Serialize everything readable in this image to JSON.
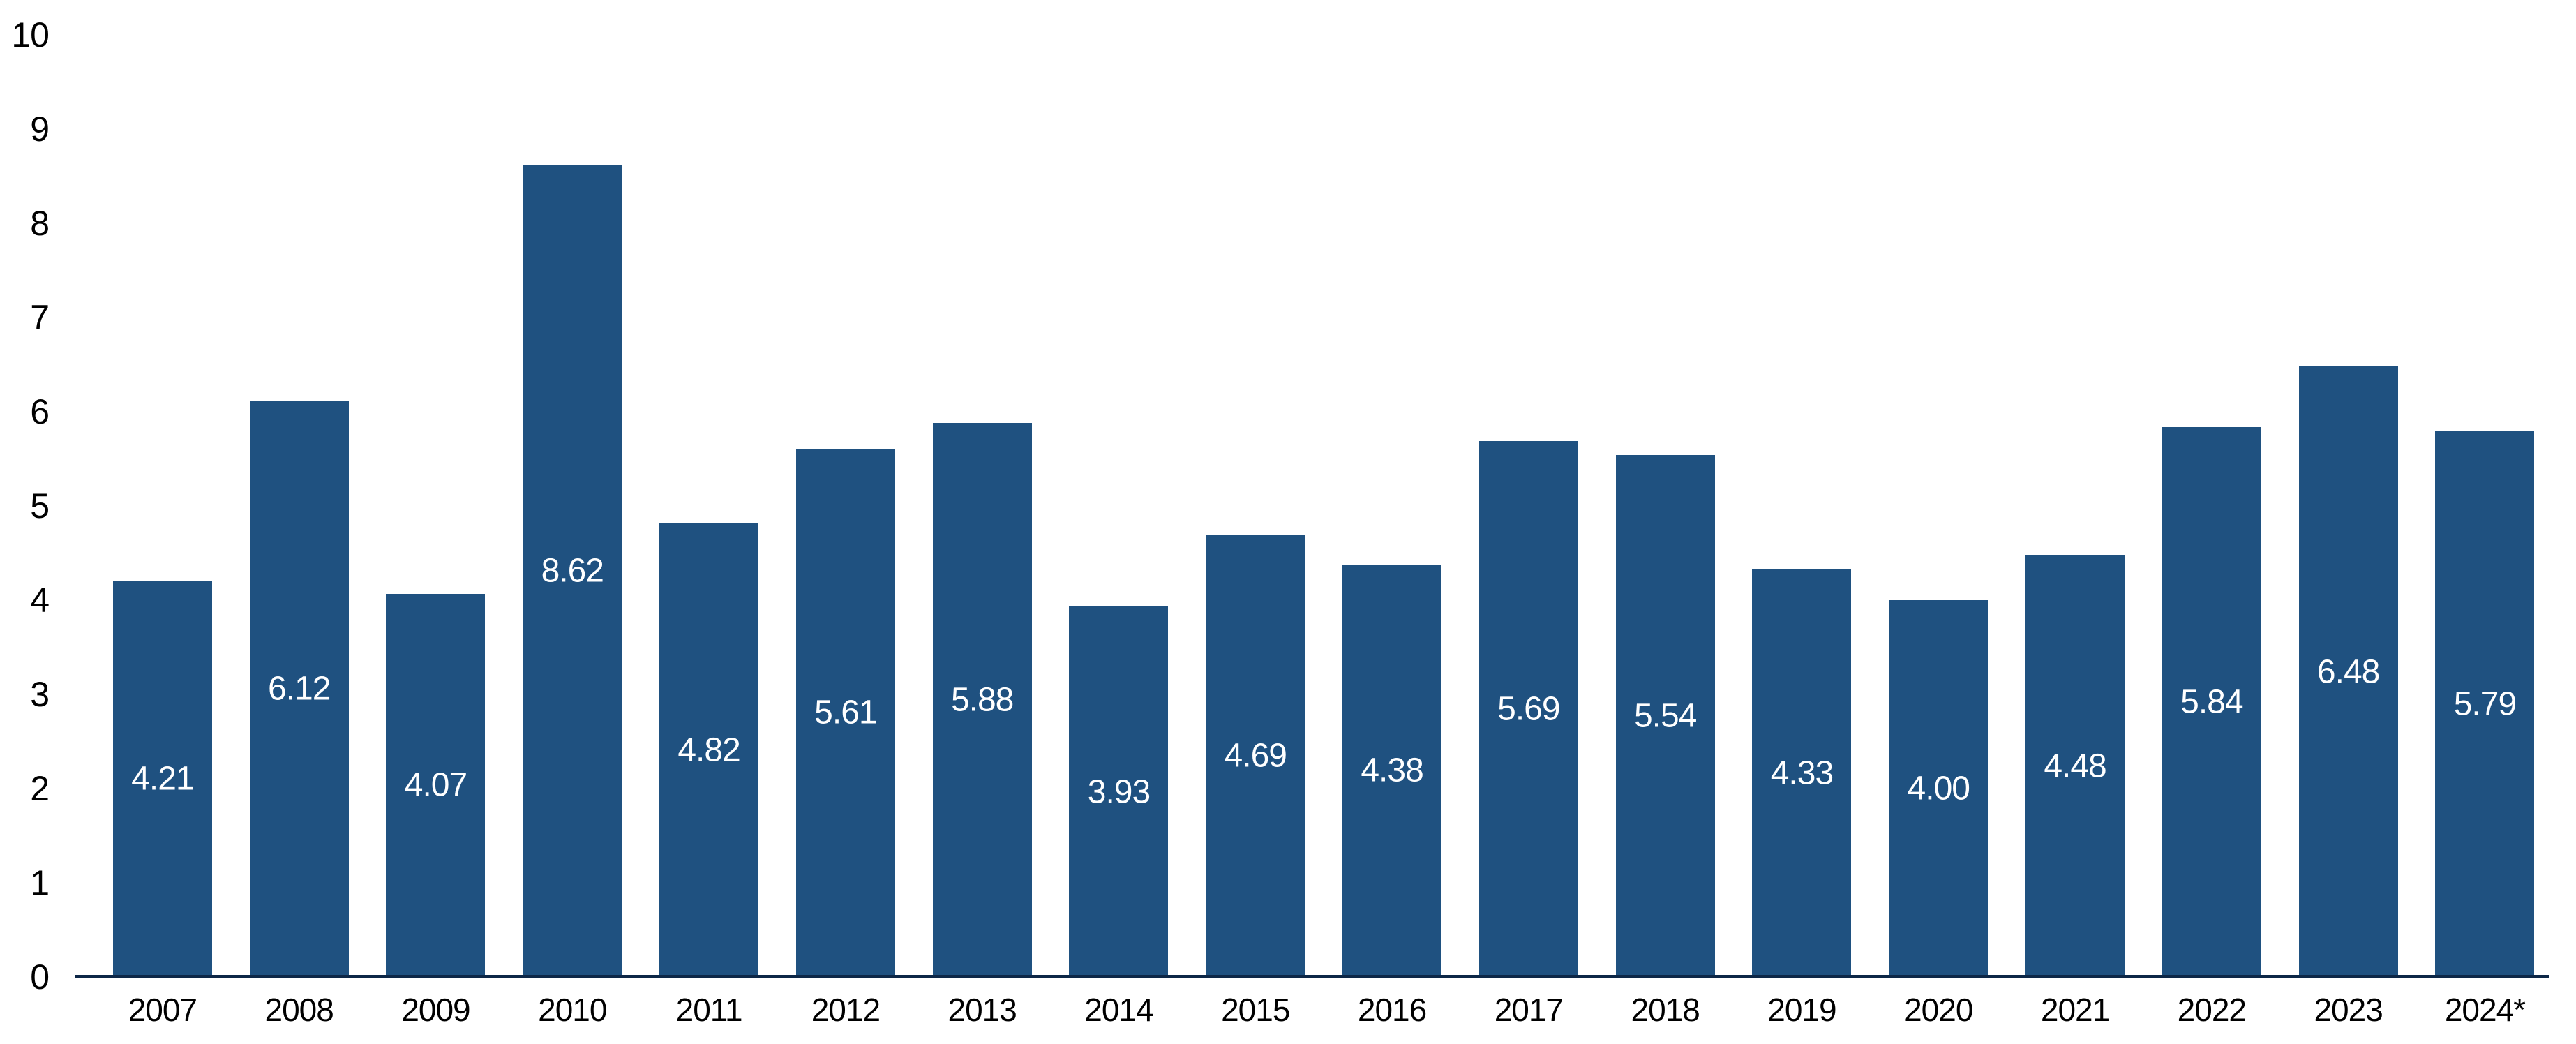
{
  "chart_data": {
    "type": "bar",
    "title": "",
    "xlabel": "",
    "ylabel": "",
    "categories": [
      "2007",
      "2008",
      "2009",
      "2010",
      "2011",
      "2012",
      "2013",
      "2014",
      "2015",
      "2016",
      "2017",
      "2018",
      "2019",
      "2020",
      "2021",
      "2022",
      "2023",
      "2024*"
    ],
    "values": [
      4.21,
      6.12,
      4.07,
      8.62,
      4.82,
      5.61,
      5.88,
      3.93,
      4.69,
      4.38,
      5.69,
      5.54,
      4.33,
      4.0,
      4.48,
      5.84,
      6.48,
      5.79
    ],
    "value_labels": [
      "4.21",
      "6.12",
      "4.07",
      "8.62",
      "4.82",
      "5.61",
      "5.88",
      "3.93",
      "4.69",
      "4.38",
      "5.69",
      "5.54",
      "4.33",
      "4.00",
      "4.48",
      "5.84",
      "6.48",
      "5.79"
    ],
    "ylim": [
      0,
      10
    ],
    "yticks": [
      "0",
      "1",
      "2",
      "3",
      "4",
      "5",
      "6",
      "7",
      "8",
      "9",
      "10"
    ],
    "grid": false,
    "legend_position": "none",
    "value_label_position": "inside-center",
    "colors": {
      "bar": "#1f5180",
      "axis_line": "#0d2747",
      "value_label": "#ffffff",
      "tick_label": "#000000",
      "background": "#ffffff"
    }
  }
}
